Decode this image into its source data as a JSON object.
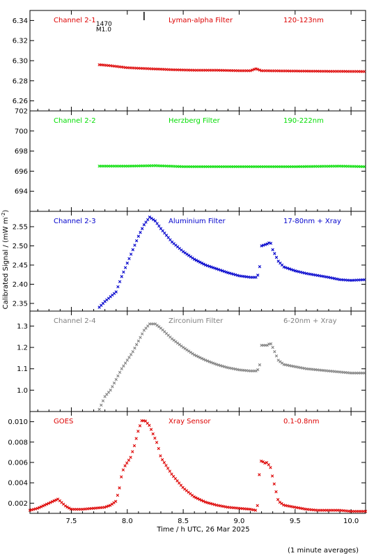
{
  "figure": {
    "xlabel": "Time / h UTC, 26 Mar 2025",
    "ylabel": "Calibrated Signal / (mW m",
    "ylabel_sup": "-2",
    "ylabel_end": ")",
    "footnote": "(1 minute averages)",
    "flare_marker": {
      "time": 8.15,
      "label_1": "1470",
      "label_2": "M1.0"
    }
  },
  "chart_data": [
    {
      "type": "scatter",
      "label": "Channel 2-1",
      "filter": "Lyman-alpha Filter",
      "band": "120-123nm",
      "color": "#dd0000",
      "xlim": [
        7.13,
        10.13
      ],
      "ylim": [
        6.25,
        6.35
      ],
      "yticks": [
        "6.26",
        "6.28",
        "6.30",
        "6.32",
        "6.34"
      ],
      "x": [
        7.75,
        7.85,
        8.0,
        8.2,
        8.4,
        8.6,
        8.8,
        9.0,
        9.1,
        9.15,
        9.2,
        9.4,
        9.6,
        9.8,
        10.0,
        10.13
      ],
      "y": [
        6.296,
        6.295,
        6.293,
        6.292,
        6.291,
        6.2905,
        6.2905,
        6.29,
        6.29,
        6.292,
        6.29,
        6.2898,
        6.2896,
        6.2894,
        6.2893,
        6.2892
      ]
    },
    {
      "type": "scatter",
      "label": "Channel 2-2",
      "filter": "Herzberg Filter",
      "band": "190-222nm",
      "color": "#00dd00",
      "xlim": [
        7.13,
        10.13
      ],
      "ylim": [
        692,
        702
      ],
      "yticks": [
        "694",
        "696",
        "698",
        "700",
        "702"
      ],
      "x": [
        7.75,
        8.0,
        8.25,
        8.5,
        9.0,
        9.5,
        9.9,
        10.13
      ],
      "y": [
        696.5,
        696.5,
        696.55,
        696.45,
        696.45,
        696.45,
        696.5,
        696.45
      ]
    },
    {
      "type": "scatter",
      "label": "Channel 2-3",
      "filter": "Aluminium Filter",
      "band": "17-80nm + Xray",
      "color": "#0000cc",
      "xlim": [
        7.13,
        10.13
      ],
      "ylim": [
        2.33,
        2.59
      ],
      "yticks": [
        "2.35",
        "2.40",
        "2.45",
        "2.50",
        "2.55"
      ],
      "x": [
        7.75,
        7.8,
        7.9,
        7.95,
        8.0,
        8.05,
        8.1,
        8.15,
        8.2,
        8.25,
        8.3,
        8.4,
        8.5,
        8.6,
        8.7,
        8.8,
        8.9,
        9.0,
        9.1,
        9.16,
        9.18,
        9.2,
        9.25,
        9.28,
        9.3,
        9.35,
        9.4,
        9.5,
        9.6,
        9.7,
        9.8,
        9.9,
        10.0,
        10.13
      ],
      "y": [
        2.34,
        2.355,
        2.38,
        2.42,
        2.455,
        2.49,
        2.525,
        2.555,
        2.575,
        2.565,
        2.545,
        2.51,
        2.485,
        2.465,
        2.45,
        2.44,
        2.43,
        2.422,
        2.418,
        2.418,
        2.435,
        2.5,
        2.505,
        2.51,
        2.49,
        2.46,
        2.445,
        2.435,
        2.428,
        2.423,
        2.418,
        2.412,
        2.41,
        2.412
      ]
    },
    {
      "type": "scatter",
      "label": "Channel 2-4",
      "filter": "Zirconium Filter",
      "band": "6-20nm + Xray",
      "color": "#808080",
      "xlim": [
        7.13,
        10.13
      ],
      "ylim": [
        0.9,
        1.37
      ],
      "yticks": [
        "1.0",
        "1.1",
        "1.2",
        "1.3"
      ],
      "x": [
        7.75,
        7.8,
        7.85,
        7.9,
        7.95,
        8.0,
        8.05,
        8.1,
        8.15,
        8.2,
        8.25,
        8.3,
        8.4,
        8.5,
        8.6,
        8.7,
        8.8,
        8.9,
        9.0,
        9.1,
        9.15,
        9.18,
        9.2,
        9.25,
        9.28,
        9.3,
        9.35,
        9.4,
        9.5,
        9.6,
        9.7,
        9.8,
        9.9,
        10.0,
        10.13
      ],
      "y": [
        0.91,
        0.97,
        1.0,
        1.05,
        1.1,
        1.14,
        1.18,
        1.23,
        1.28,
        1.31,
        1.31,
        1.29,
        1.24,
        1.2,
        1.165,
        1.14,
        1.12,
        1.105,
        1.095,
        1.09,
        1.09,
        1.1,
        1.21,
        1.21,
        1.22,
        1.2,
        1.14,
        1.12,
        1.11,
        1.1,
        1.095,
        1.09,
        1.085,
        1.08,
        1.08
      ]
    },
    {
      "type": "scatter",
      "label": "GOES",
      "filter": "Xray Sensor",
      "band": "0.1-0.8nm",
      "color": "#dd0000",
      "xlim": [
        7.13,
        10.13
      ],
      "ylim": [
        0.001,
        0.011
      ],
      "yticks": [
        "0.002",
        "0.004",
        "0.006",
        "0.008",
        "0.010"
      ],
      "x": [
        7.13,
        7.2,
        7.3,
        7.38,
        7.45,
        7.5,
        7.6,
        7.7,
        7.8,
        7.85,
        7.9,
        7.93,
        7.95,
        7.97,
        8.0,
        8.03,
        8.06,
        8.1,
        8.13,
        8.16,
        8.2,
        8.23,
        8.27,
        8.3,
        8.4,
        8.5,
        8.6,
        8.7,
        8.8,
        8.9,
        9.0,
        9.1,
        9.15,
        9.17,
        9.18,
        9.2,
        9.22,
        9.25,
        9.28,
        9.3,
        9.35,
        9.4,
        9.5,
        9.6,
        9.7,
        9.8,
        9.9,
        10.0,
        10.13
      ],
      "y": [
        0.0013,
        0.0015,
        0.002,
        0.0024,
        0.0017,
        0.0014,
        0.0014,
        0.0015,
        0.0016,
        0.0018,
        0.0022,
        0.0035,
        0.0048,
        0.0055,
        0.006,
        0.0065,
        0.0075,
        0.0092,
        0.0101,
        0.0101,
        0.0096,
        0.0088,
        0.0078,
        0.0065,
        0.0048,
        0.0035,
        0.0026,
        0.0021,
        0.0018,
        0.0016,
        0.0015,
        0.0014,
        0.0013,
        0.002,
        0.0048,
        0.0064,
        0.0059,
        0.006,
        0.0055,
        0.0045,
        0.0022,
        0.0018,
        0.0016,
        0.0014,
        0.0013,
        0.0013,
        0.0013,
        0.0012,
        0.0012
      ]
    }
  ],
  "xticks": [
    "7.5",
    "8.0",
    "8.5",
    "9.0",
    "9.5",
    "10.0"
  ]
}
